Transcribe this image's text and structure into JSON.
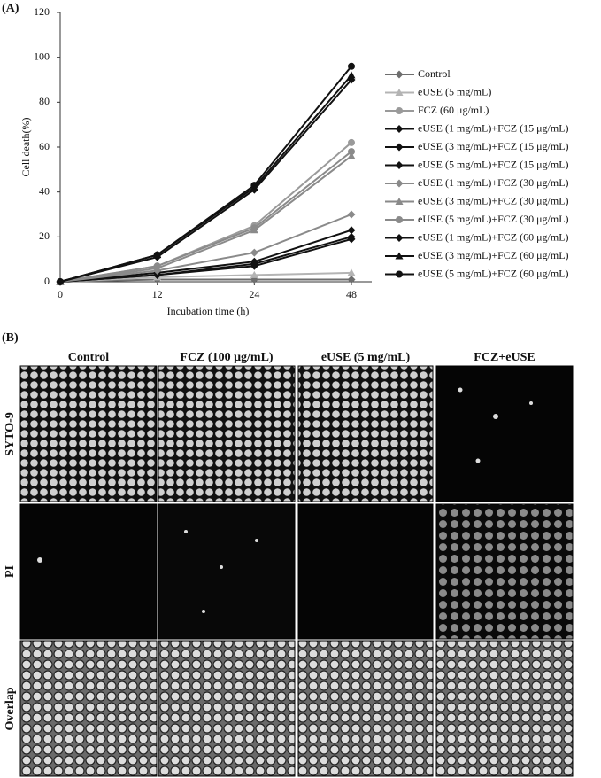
{
  "chart_data": {
    "type": "line",
    "panel_label": "(A)",
    "x_label": "Incubation time (h)",
    "y_label": "Cell death(%)",
    "categories": [
      "0",
      "12",
      "24",
      "48"
    ],
    "ylim": [
      0,
      120
    ],
    "yticks": [
      0,
      20,
      40,
      60,
      80,
      100,
      120
    ],
    "grid": false,
    "legend": "right",
    "series": [
      {
        "name": "Control",
        "color": "#6e6e6e",
        "marker": "diamond",
        "values": [
          0,
          1,
          1,
          1
        ]
      },
      {
        "name": "eUSE (5 mg/mL)",
        "color": "#b4b4b4",
        "marker": "triangle",
        "values": [
          0,
          2,
          3,
          4
        ]
      },
      {
        "name": "FCZ (60 μg/mL)",
        "color": "#9a9a9a",
        "marker": "circle",
        "values": [
          0,
          7,
          25,
          62
        ]
      },
      {
        "name": "eUSE (1 mg/mL)+FCZ (15 μg/mL)",
        "color": "#111111",
        "marker": "diamond",
        "values": [
          0,
          3,
          7,
          19
        ]
      },
      {
        "name": "eUSE (3 mg/mL)+FCZ (15 μg/mL)",
        "color": "#111111",
        "marker": "diamond",
        "values": [
          0,
          3,
          8,
          20
        ]
      },
      {
        "name": "eUSE (5 mg/mL)+FCZ (15 μg/mL)",
        "color": "#111111",
        "marker": "diamond",
        "values": [
          0,
          4,
          9,
          23
        ]
      },
      {
        "name": "eUSE (1 mg/mL)+FCZ (30 μg/mL)",
        "color": "#8a8a8a",
        "marker": "diamond",
        "values": [
          0,
          5,
          13,
          30
        ]
      },
      {
        "name": "eUSE (3 mg/mL)+FCZ (30 μg/mL)",
        "color": "#8a8a8a",
        "marker": "triangle",
        "values": [
          0,
          6,
          23,
          56
        ]
      },
      {
        "name": "eUSE (5 mg/mL)+FCZ (30 μg/mL)",
        "color": "#8a8a8a",
        "marker": "circle",
        "values": [
          0,
          7,
          24,
          58
        ]
      },
      {
        "name": "eUSE (1 mg/mL)+FCZ (60 μg/mL)",
        "color": "#111111",
        "marker": "diamond",
        "values": [
          0,
          11,
          41,
          90
        ]
      },
      {
        "name": "eUSE (3 mg/mL)+FCZ (60 μg/mL)",
        "color": "#111111",
        "marker": "triangle",
        "values": [
          0,
          12,
          42,
          92
        ]
      },
      {
        "name": "eUSE (5 mg/mL)+FCZ (60 μg/mL)",
        "color": "#111111",
        "marker": "circle",
        "values": [
          0,
          12,
          43,
          96
        ]
      }
    ]
  },
  "microscopy": {
    "panel_label": "(B)",
    "columns": [
      "Control",
      "FCZ (100 μg/mL)",
      "eUSE (5 mg/mL)",
      "FCZ+eUSE"
    ],
    "rows": [
      "SYTO-9",
      "PI",
      "Overlap"
    ]
  }
}
